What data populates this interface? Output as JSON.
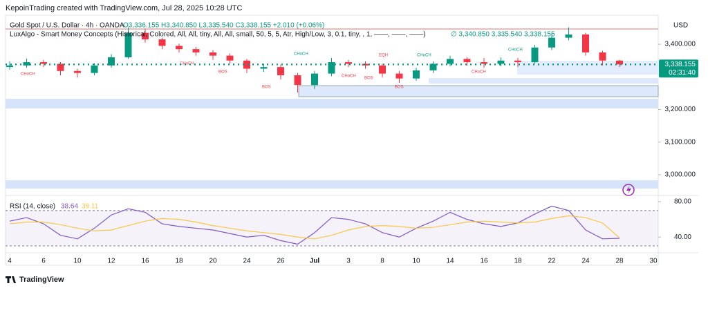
{
  "header": {
    "credit": "KepoinTrading created with TradingView.com, Jul 28, 2025 10:28 UTC",
    "symbol": "Gold Spot / U.S. Dollar · 4h · OANDA",
    "ohlc": "O3,336.155 H3,340.850 L3,335.540 C3,338.155 +2.010 (+0.06%)",
    "indicator": "LuxAlgo - Smart Money Concepts (Historical, Colored, All, All, tiny, All, All, small, 50, 5, 5, Atr, High/Low, 3, 0.1, tiny, , 1, ——, ——, ——)",
    "indicator_values": "∅ 3,340.850 3,335.540 3,338.155",
    "currency": "USD",
    "price_label": "3,338.155",
    "countdown": "02:31:40",
    "brand": "TradingView",
    "annotations": [
      "CHoCH",
      "CHoCH",
      "BOS",
      "BOS",
      "CHoCH",
      "EQH",
      "CHoCH",
      "BOS",
      "CHoCH",
      "BOS",
      "CHoCH",
      "CHoCH"
    ]
  },
  "chart_data": [
    {
      "type": "candlestick",
      "categories": [
        "4",
        null,
        "6",
        null,
        "10",
        null,
        "12",
        null,
        "16",
        null,
        "18",
        null,
        "20",
        null,
        "24",
        null,
        "26",
        null,
        "Jul",
        null,
        "3",
        null,
        "8",
        null,
        "10",
        null,
        "14",
        null,
        "16",
        null,
        "18",
        null,
        "22",
        null,
        "24",
        null,
        "28",
        null,
        "30",
        null
      ],
      "open": [
        3330,
        3335,
        3345,
        3340,
        3318,
        3312,
        3335,
        3360,
        3435,
        3415,
        3395,
        3385,
        3375,
        3365,
        3350,
        3325,
        3330,
        3305,
        3275,
        3310,
        3345,
        3340,
        3335,
        3310,
        3295,
        3320,
        3340,
        3355,
        3345,
        3340,
        3350,
        3345,
        3390,
        3420,
        3430,
        3375,
        3350,
        null,
        null,
        null
      ],
      "high": [
        3348,
        3356,
        3352,
        3345,
        3325,
        3342,
        3370,
        3452,
        3448,
        3420,
        3402,
        3392,
        3382,
        3372,
        3355,
        3340,
        3338,
        3312,
        3318,
        3358,
        3352,
        3348,
        3340,
        3318,
        3328,
        3348,
        3365,
        3360,
        3358,
        3360,
        3358,
        3398,
        3432,
        3452,
        3435,
        3380,
        3352,
        null,
        null,
        null
      ],
      "low": [
        3322,
        3328,
        3330,
        3305,
        3298,
        3305,
        3328,
        3355,
        3405,
        3385,
        3375,
        3365,
        3352,
        3340,
        3312,
        3315,
        3292,
        3252,
        3262,
        3302,
        3330,
        3325,
        3298,
        3282,
        3288,
        3312,
        3332,
        3335,
        3328,
        3332,
        3330,
        3340,
        3382,
        3412,
        3365,
        3335,
        3330,
        null,
        null,
        null
      ],
      "close": [
        3335,
        3345,
        3340,
        3318,
        3312,
        3335,
        3360,
        3435,
        3415,
        3395,
        3385,
        3375,
        3365,
        3350,
        3325,
        3330,
        3305,
        3275,
        3310,
        3345,
        3340,
        3335,
        3310,
        3295,
        3320,
        3340,
        3355,
        3345,
        3340,
        3350,
        3345,
        3390,
        3420,
        3430,
        3375,
        3350,
        3338.155,
        null,
        null,
        null
      ],
      "up_color": "#089981",
      "down_color": "#f23645",
      "ylim": [
        2943,
        3489
      ],
      "yticks": [
        {
          "value": 3000,
          "label": "3,000.000"
        },
        {
          "value": 3100,
          "label": "3,100.000"
        },
        {
          "value": 3200,
          "label": "3,200.000"
        },
        {
          "value": 3400,
          "label": "3,400.000"
        }
      ]
    },
    {
      "type": "line",
      "title": "RSI (14, close)",
      "series": [
        {
          "name": "RSI",
          "color": "#7e57c2",
          "values": [
            58,
            62,
            55,
            42,
            38,
            50,
            65,
            72,
            68,
            55,
            52,
            50,
            48,
            44,
            40,
            42,
            36,
            32,
            45,
            62,
            60,
            55,
            45,
            40,
            50,
            58,
            68,
            60,
            55,
            52,
            56,
            66,
            75,
            70,
            48,
            38,
            38.64,
            null,
            null,
            null
          ]
        },
        {
          "name": "RSI-based MA",
          "color": "#f7c843",
          "values": [
            55,
            57,
            57,
            54,
            50,
            47,
            48,
            53,
            58,
            61,
            60,
            57,
            53,
            50,
            47,
            45,
            43,
            40,
            38,
            42,
            48,
            52,
            53,
            52,
            50,
            51,
            54,
            57,
            58,
            57,
            56,
            57,
            61,
            64,
            62,
            56,
            39.11,
            null,
            null,
            null
          ]
        }
      ],
      "band": [
        30,
        70
      ],
      "ylim": [
        23,
        85.5
      ],
      "yticks": [
        {
          "value": 40,
          "label": "40.00"
        },
        {
          "value": 80,
          "label": "80.00"
        }
      ]
    }
  ]
}
